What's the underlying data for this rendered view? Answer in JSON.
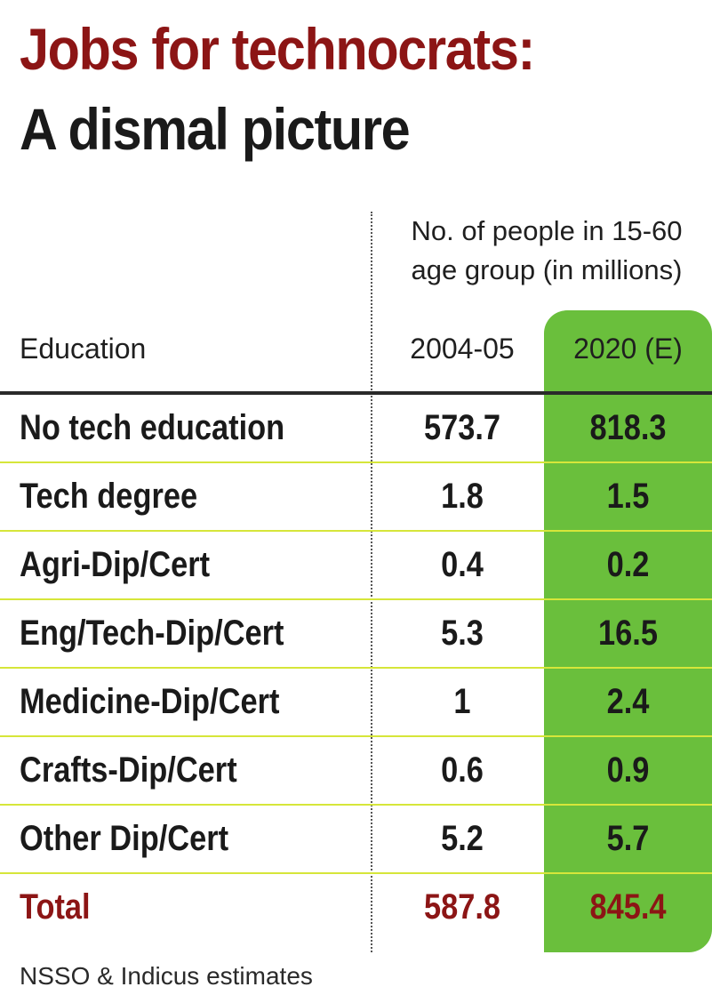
{
  "title": {
    "line1": "Jobs for technocrats:",
    "line2": "A dismal picture"
  },
  "column_note": {
    "line1": "No. of people in 15-60",
    "line2": "age group (in millions)"
  },
  "headers": {
    "education": "Education",
    "col1": "2004-05",
    "col2": "2020 (E)"
  },
  "source": "NSSO & Indicus estimates",
  "colors": {
    "title_accent": "#8c1515",
    "highlight_column": "#6abf3c",
    "row_rule": "#d6e63a"
  },
  "chart_data": {
    "type": "table",
    "columns": [
      "Education",
      "2004-05",
      "2020 (E)"
    ],
    "rows": [
      {
        "label": "No tech education",
        "v1": "573.7",
        "v2": "818.3"
      },
      {
        "label": "Tech degree",
        "v1": "1.8",
        "v2": "1.5"
      },
      {
        "label": "Agri-Dip/Cert",
        "v1": "0.4",
        "v2": "0.2"
      },
      {
        "label": "Eng/Tech-Dip/Cert",
        "v1": "5.3",
        "v2": "16.5"
      },
      {
        "label": "Medicine-Dip/Cert",
        "v1": "1",
        "v2": "2.4"
      },
      {
        "label": "Crafts-Dip/Cert",
        "v1": "0.6",
        "v2": "0.9"
      },
      {
        "label": "Other Dip/Cert",
        "v1": "5.2",
        "v2": "5.7"
      },
      {
        "label": "Total",
        "v1": "587.8",
        "v2": "845.4",
        "total": true
      }
    ]
  }
}
